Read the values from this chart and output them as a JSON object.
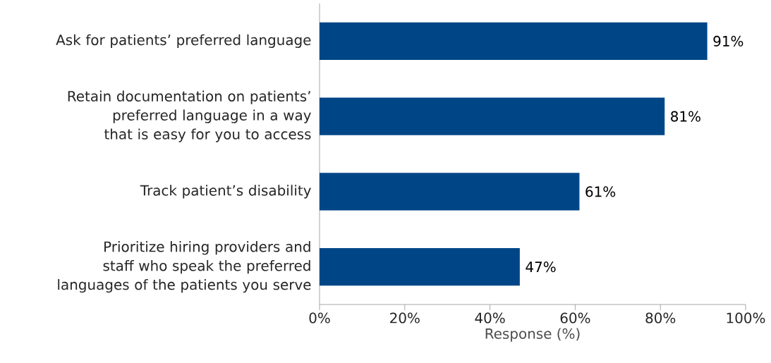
{
  "chart_data": {
    "type": "bar",
    "orientation": "horizontal",
    "categories": [
      "Ask for patients’ preferred language",
      "Retain documentation on patients’ preferred language in a way that is easy for you to access",
      "Track patient’s disability",
      "Prioritize hiring providers and staff who speak the preferred languages of the patients you serve"
    ],
    "values": [
      91,
      81,
      61,
      47
    ],
    "value_labels": [
      "91%",
      "81%",
      "61%",
      "47%"
    ],
    "color": "#004687",
    "xlabel": "Response (%)",
    "xlim": [
      0,
      100
    ],
    "xticks": [
      {
        "value": 0,
        "label": "0%"
      },
      {
        "value": 20,
        "label": "20%"
      },
      {
        "value": 40,
        "label": "40%"
      },
      {
        "value": 60,
        "label": "60%"
      },
      {
        "value": 80,
        "label": "80%"
      },
      {
        "value": 100,
        "label": "100%"
      }
    ],
    "grid": false
  }
}
